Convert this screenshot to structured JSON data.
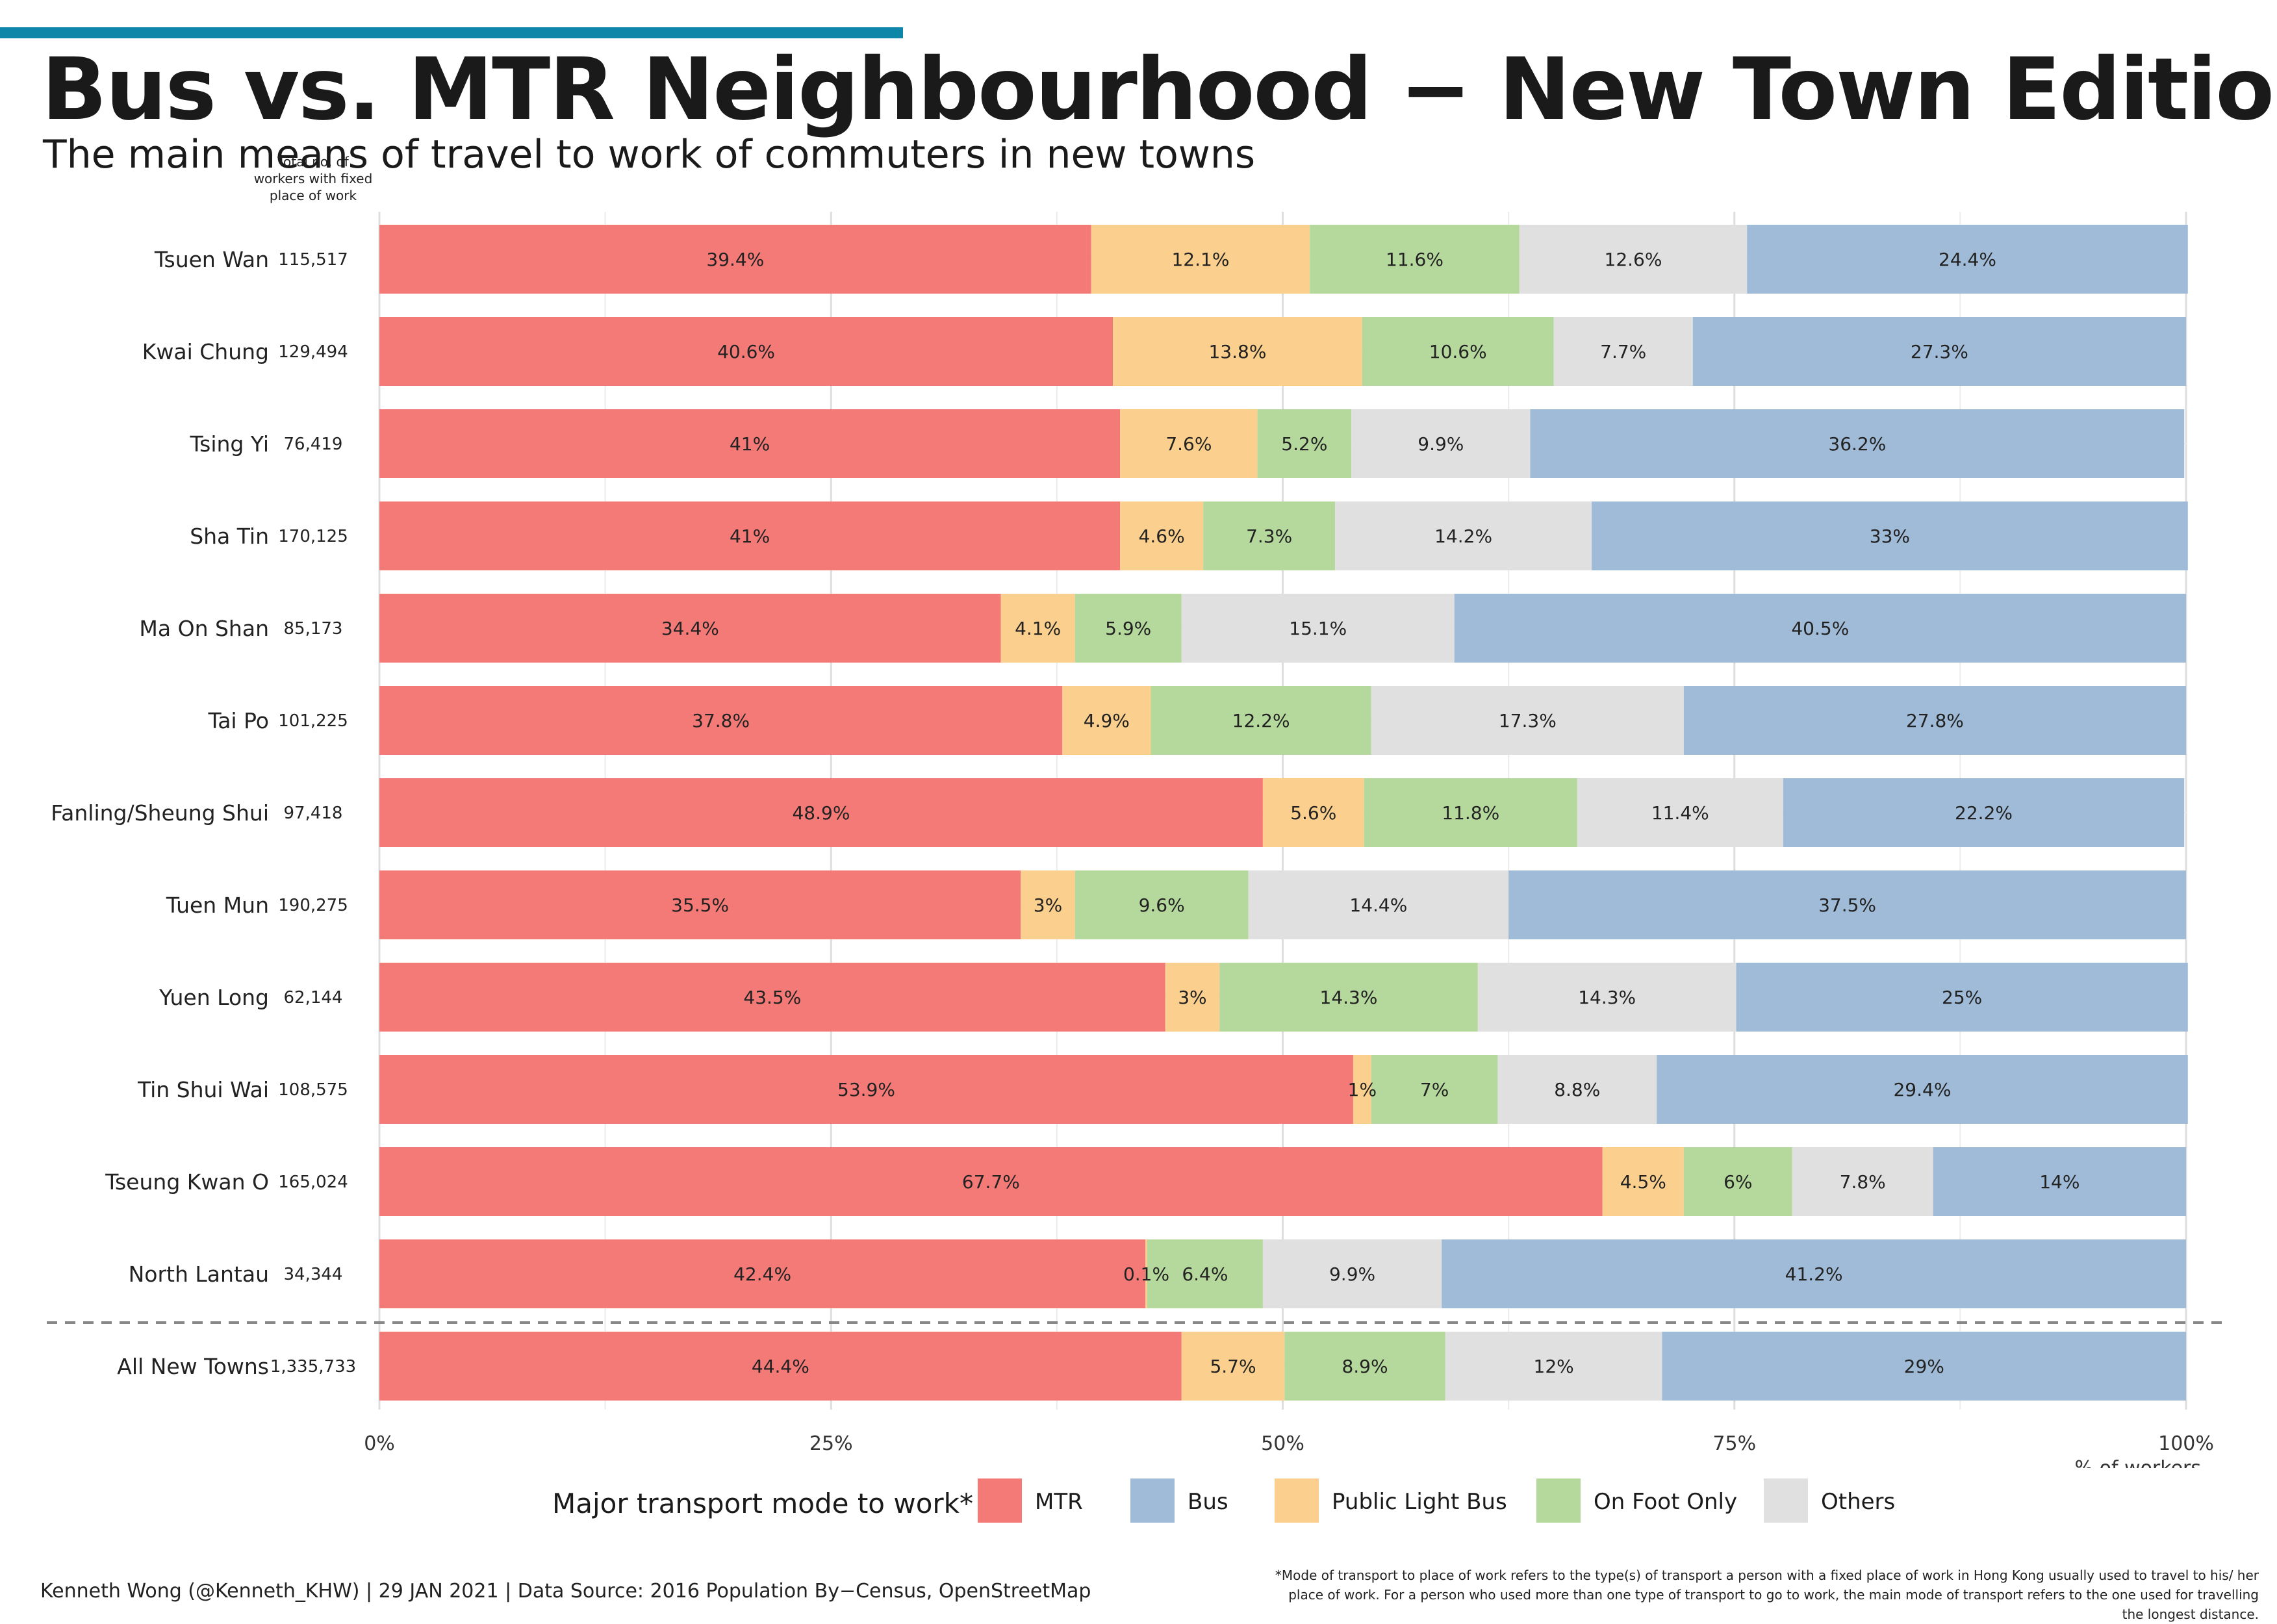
{
  "header": {
    "title": "Bus vs. MTR Neighbourhood − New Town Edition",
    "subtitle": "The main means of travel to work of commuters in new towns",
    "accent_color": "#0e86a8"
  },
  "chart_data": {
    "type": "bar",
    "orientation": "horizontal",
    "stacked": true,
    "count_header": "Total no. of workers with fixed place of work",
    "categories": [
      "Tsuen Wan",
      "Kwai Chung",
      "Tsing Yi",
      "Sha Tin",
      "Ma On Shan",
      "Tai Po",
      "Fanling/Sheung Shui",
      "Tuen Mun",
      "Yuen Long",
      "Tin Shui Wai",
      "Tseung Kwan O",
      "North Lantau",
      "All New Towns"
    ],
    "counts": [
      "115,517",
      "129,494",
      "76,419",
      "170,125",
      "85,173",
      "101,225",
      "97,418",
      "190,275",
      "62,144",
      "108,575",
      "165,024",
      "34,344",
      "1,335,733"
    ],
    "series": [
      {
        "name": "MTR",
        "color": "#f47a77",
        "values": [
          39.4,
          40.6,
          41,
          41,
          34.4,
          37.8,
          48.9,
          35.5,
          43.5,
          53.9,
          67.7,
          42.4,
          44.4
        ],
        "labels": [
          "39.4%",
          "40.6%",
          "41%",
          "41%",
          "34.4%",
          "37.8%",
          "48.9%",
          "35.5%",
          "43.5%",
          "53.9%",
          "67.7%",
          "42.4%",
          "44.4%"
        ]
      },
      {
        "name": "Public Light Bus",
        "color": "#fbcf8d",
        "values": [
          12.1,
          13.8,
          7.6,
          4.6,
          4.1,
          4.9,
          5.6,
          3,
          3,
          1,
          4.5,
          0.1,
          5.7
        ],
        "labels": [
          "12.1%",
          "13.8%",
          "7.6%",
          "4.6%",
          "4.1%",
          "4.9%",
          "5.6%",
          "3%",
          "3%",
          "1%",
          "4.5%",
          "0.1%",
          "5.7%"
        ]
      },
      {
        "name": "On Foot Only",
        "color": "#b5d89d",
        "values": [
          11.6,
          10.6,
          5.2,
          7.3,
          5.9,
          12.2,
          11.8,
          9.6,
          14.3,
          7,
          6,
          6.4,
          8.9
        ],
        "labels": [
          "11.6%",
          "10.6%",
          "5.2%",
          "7.3%",
          "5.9%",
          "12.2%",
          "11.8%",
          "9.6%",
          "14.3%",
          "7%",
          "6%",
          "6.4%",
          "8.9%"
        ]
      },
      {
        "name": "Others",
        "color": "#e0e0e0",
        "values": [
          12.6,
          7.7,
          9.9,
          14.2,
          15.1,
          17.3,
          11.4,
          14.4,
          14.3,
          8.8,
          7.8,
          9.9,
          12
        ],
        "labels": [
          "12.6%",
          "7.7%",
          "9.9%",
          "14.2%",
          "15.1%",
          "17.3%",
          "11.4%",
          "14.4%",
          "14.3%",
          "8.8%",
          "7.8%",
          "9.9%",
          "12%"
        ]
      },
      {
        "name": "Bus",
        "color": "#a0bbd7",
        "values": [
          24.4,
          27.3,
          36.2,
          33,
          40.5,
          27.8,
          22.2,
          37.5,
          25,
          29.4,
          14,
          41.2,
          29
        ],
        "labels": [
          "24.4%",
          "27.3%",
          "36.2%",
          "33%",
          "40.5%",
          "27.8%",
          "22.2%",
          "37.5%",
          "25%",
          "29.4%",
          "14%",
          "41.2%",
          "29%"
        ]
      }
    ],
    "xlim": [
      0,
      100
    ],
    "x_ticks": [
      "0%",
      "25%",
      "50%",
      "75%",
      "100%"
    ],
    "xlabel": "% of workers",
    "ylabel": "",
    "grid": true,
    "separator_before": "All New Towns",
    "legend": {
      "title": "Major transport mode to work*",
      "position": "bottom",
      "order": [
        "MTR",
        "Bus",
        "Public Light Bus",
        "On Foot Only",
        "Others"
      ]
    }
  },
  "footer": {
    "caption": "Kenneth Wong (@Kenneth_KHW) | 29 JAN 2021 | Data Source: 2016 Population By−Census, OpenStreetMap",
    "footnote": "*Mode of transport to place of work refers to the type(s) of transport a person with a fixed place of work in Hong Kong usually used to travel to his/ her place of work. For a person who used more than one type of transport to go to work, the main mode of transport refers to the one used for travelling the longest distance."
  }
}
